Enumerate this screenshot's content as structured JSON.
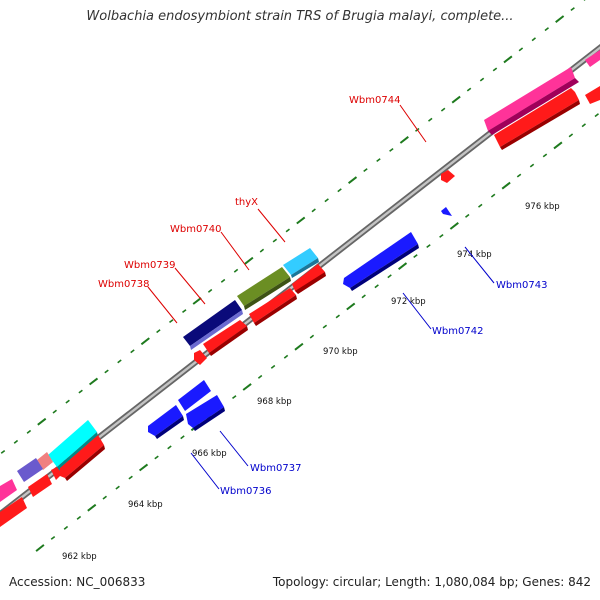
{
  "title": "Wolbachia endosymbiont strain TRS of Brugia malayi, complete...",
  "footer": {
    "accession": "Accession: NC_006833",
    "summary": "Topology: circular; Length: 1,080,084 bp; Genes: 842"
  },
  "colors": {
    "backbone": "#888888",
    "tick": "#1e7a1e",
    "forward_label": "#dd0000",
    "reverse_label": "#0000cc",
    "cds_forward": "#ff0000",
    "cds_reverse": "#0000ee"
  },
  "scale_labels": [
    "962 kbp",
    "964 kbp",
    "966 kbp",
    "968 kbp",
    "970 kbp",
    "972 kbp",
    "974 kbp",
    "976 kbp"
  ],
  "gene_labels": {
    "forward": [
      "Wbm0738",
      "Wbm0739",
      "Wbm0740",
      "thyX",
      "Wbm0744"
    ],
    "reverse": [
      "Wbm0736",
      "Wbm0737",
      "Wbm0742",
      "Wbm0743"
    ]
  }
}
